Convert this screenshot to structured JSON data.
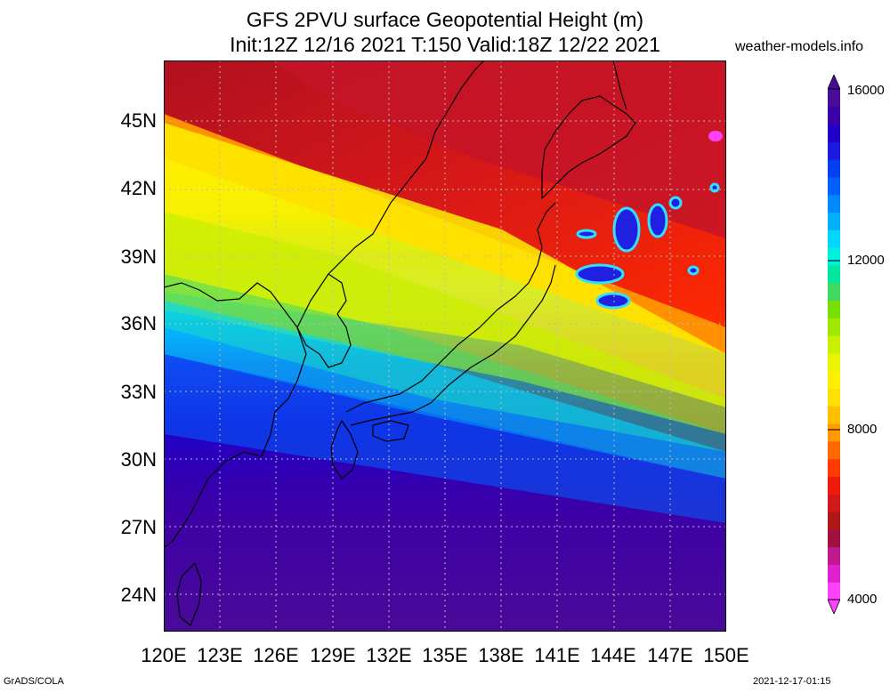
{
  "title": {
    "line1": "GFS 2PVU surface Geopotential Height (m)",
    "line2": "Init:12Z 12/16 2021 T:150 Valid:18Z 12/22 2021"
  },
  "site": "weather-models.info",
  "lat_ticks": [
    "45N",
    "42N",
    "39N",
    "36N",
    "33N",
    "30N",
    "27N",
    "24N"
  ],
  "lon_ticks": [
    "120E",
    "123E",
    "126E",
    "129E",
    "132E",
    "135E",
    "138E",
    "141E",
    "144E",
    "147E",
    "150E"
  ],
  "colorbar": {
    "labels": [
      "16000",
      "12000",
      "8000",
      "4000"
    ],
    "colors": [
      "#ff40ff",
      "#e020d0",
      "#c01890",
      "#a01040",
      "#b01818",
      "#d21818",
      "#f01a0a",
      "#ff3a00",
      "#ff6a00",
      "#ff9a00",
      "#ffc000",
      "#ffe000",
      "#fff000",
      "#e8f400",
      "#c8f000",
      "#a0e800",
      "#78e000",
      "#40d860",
      "#00e8a0",
      "#00f0e0",
      "#00d8ff",
      "#00b0ff",
      "#0088ff",
      "#0060ff",
      "#0040f0",
      "#1a1ae0",
      "#2000c8",
      "#3c00a8",
      "#4a0a98"
    ]
  },
  "footer": {
    "left": "GrADS/COLA",
    "right": "2021-12-17-01:15"
  }
}
